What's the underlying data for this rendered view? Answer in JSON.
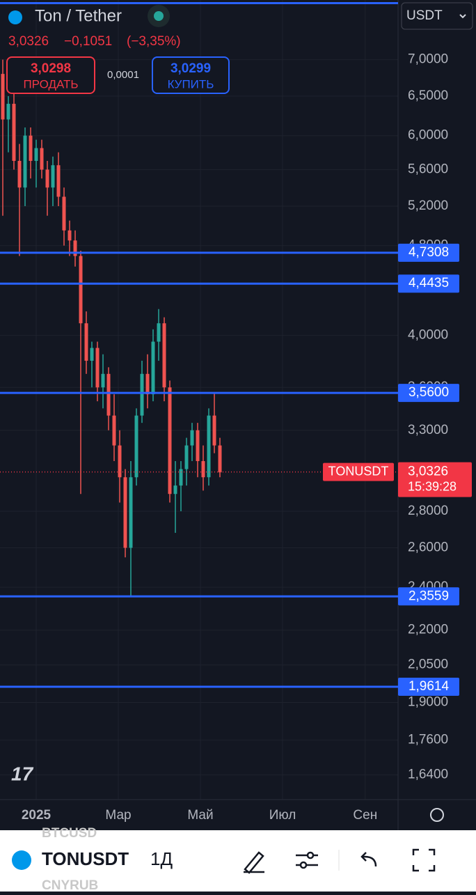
{
  "header": {
    "symbol": "Ton / Tether",
    "price": "3,0326",
    "change": "−0,1051",
    "change_pct": "(−3,35%)",
    "sell_price": "3,0298",
    "sell_label": "ПРОДАТЬ",
    "spread": "0,0001",
    "buy_price": "3,0299",
    "buy_label": "КУПИТЬ",
    "currency": "USDT"
  },
  "chart_data": {
    "type": "candlestick",
    "categories": [
      null,
      null,
      null,
      null,
      null,
      null,
      null,
      null,
      null,
      null,
      null,
      null,
      null,
      null,
      null,
      null,
      null,
      null,
      null,
      null,
      null,
      null,
      null,
      null,
      null,
      null,
      null,
      null,
      null,
      null,
      null,
      null,
      null,
      null,
      null,
      null,
      null,
      null,
      null,
      null
    ],
    "open": [
      6.8,
      6.2,
      6.4,
      5.7,
      5.4,
      6.0,
      5.7,
      5.85,
      5.6,
      5.4,
      5.65,
      5.3,
      4.95,
      4.85,
      4.7,
      4.1,
      3.8,
      3.9,
      3.6,
      3.7,
      3.4,
      3.2,
      3.0,
      2.6,
      3.0,
      3.4,
      3.7,
      3.55,
      3.95,
      4.1,
      3.6,
      2.9,
      2.95,
      3.05,
      3.2,
      3.3,
      3.1,
      3.0,
      3.4,
      3.2
    ],
    "high": [
      7.0,
      6.5,
      6.6,
      5.9,
      6.1,
      6.1,
      5.95,
      5.95,
      5.7,
      5.75,
      5.8,
      5.4,
      5.05,
      4.95,
      4.75,
      4.2,
      3.95,
      3.95,
      3.85,
      3.75,
      3.55,
      3.3,
      3.05,
      3.1,
      3.45,
      3.8,
      3.85,
      4.05,
      4.22,
      4.15,
      3.65,
      3.1,
      3.1,
      3.25,
      3.35,
      3.35,
      3.2,
      3.45,
      3.56,
      3.25
    ],
    "low": [
      5.1,
      5.8,
      5.6,
      4.7,
      5.2,
      5.5,
      5.4,
      5.5,
      5.1,
      5.2,
      5.2,
      4.8,
      4.7,
      4.6,
      2.9,
      3.7,
      3.6,
      3.5,
      3.45,
      3.3,
      3.1,
      2.85,
      2.55,
      2.36,
      2.95,
      3.35,
      3.45,
      3.5,
      3.8,
      3.5,
      2.85,
      2.68,
      2.8,
      2.95,
      3.1,
      3.0,
      2.92,
      2.95,
      3.15,
      3.0
    ],
    "close": [
      6.2,
      6.4,
      5.7,
      5.4,
      6.0,
      5.7,
      5.85,
      5.6,
      5.4,
      5.65,
      5.3,
      4.95,
      4.85,
      4.7,
      4.1,
      3.8,
      3.9,
      3.6,
      3.7,
      3.4,
      3.2,
      3.0,
      2.6,
      3.0,
      3.4,
      3.7,
      3.55,
      3.95,
      4.1,
      3.6,
      2.9,
      2.95,
      3.05,
      3.2,
      3.3,
      3.1,
      3.0,
      3.4,
      3.2,
      3.03
    ],
    "up_color": "#26a69a",
    "down_color": "#ef5350",
    "xlim": [
      -0.5,
      71
    ],
    "ylim": [
      1.56,
      7.9
    ],
    "log_scale": true,
    "grid": true,
    "yticks": [
      {
        "value": 7,
        "label": "7,0000"
      },
      {
        "value": 6.5,
        "label": "6,5000"
      },
      {
        "value": 6,
        "label": "6,0000"
      },
      {
        "value": 5.6,
        "label": "5,6000"
      },
      {
        "value": 5.2,
        "label": "5,2000"
      },
      {
        "value": 4.8,
        "label": "4,8000"
      },
      {
        "value": 4,
        "label": "4,0000"
      },
      {
        "value": 3.6,
        "label": "3,6000"
      },
      {
        "value": 3.3,
        "label": "3,3000"
      },
      {
        "value": 2.8,
        "label": "2,8000"
      },
      {
        "value": 2.6,
        "label": "2,6000"
      },
      {
        "value": 2.4,
        "label": "2,4000"
      },
      {
        "value": 2.2,
        "label": "2,2000"
      },
      {
        "value": 2.05,
        "label": "2,0500"
      },
      {
        "value": 1.9,
        "label": "1,9000"
      },
      {
        "value": 1.76,
        "label": "1,7600"
      },
      {
        "value": 1.64,
        "label": "1,6400"
      }
    ],
    "xticks": [
      {
        "value": 6,
        "label": "2025"
      },
      {
        "value": 20.75,
        "label": "Мар"
      },
      {
        "value": 35.5,
        "label": "Май"
      },
      {
        "value": 50.25,
        "label": "Июл"
      },
      {
        "value": 65.1,
        "label": "Сен"
      }
    ],
    "horizontal_lines": [
      {
        "value": 7.85
      },
      {
        "value": 4.7308,
        "label": "4,7308"
      },
      {
        "value": 4.4435,
        "label": "4,4435"
      },
      {
        "value": 3.56,
        "label": "3,5600"
      },
      {
        "value": 2.3559,
        "label": "2,3559"
      },
      {
        "value": 1.9614,
        "label": "1,9614"
      }
    ],
    "last_price": {
      "value": 3.0326,
      "label": "3,0326",
      "symbol": "TONUSDT",
      "countdown": "15:39:28"
    }
  },
  "toolbar": {
    "symbol": "TONUSDT",
    "interval": "1Д",
    "watchlist_above": "BTCUSD",
    "watchlist_below": "CNYRUB"
  }
}
